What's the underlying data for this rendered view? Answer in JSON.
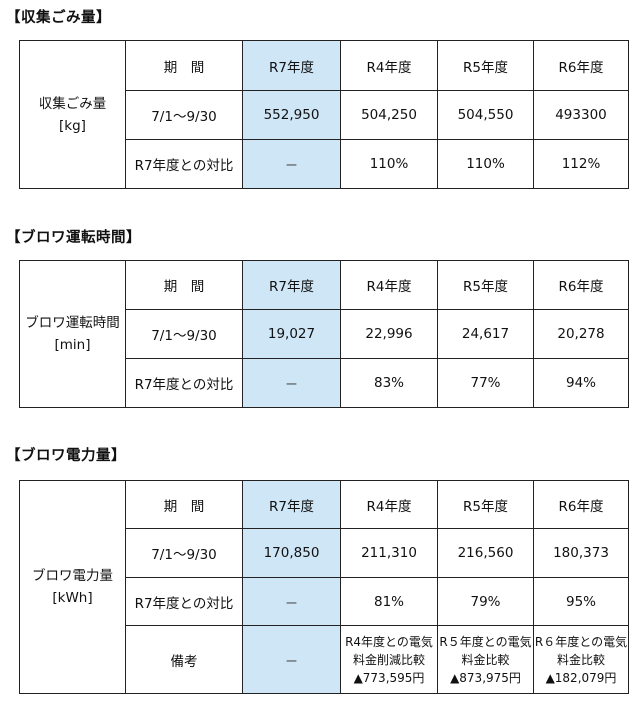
{
  "sections": [
    {
      "title": "【収集ごみ量】",
      "row_label": [
        "収集ごみ量",
        "[kg]"
      ],
      "header": [
        "期　間",
        "R7年度",
        "R4年度",
        "R5年度",
        "R6年度"
      ],
      "row1": [
        "7/1～9/30",
        "552,950",
        "504,250",
        "504,550",
        "493300"
      ],
      "row2": [
        "R7年度との対比",
        "－",
        "110%",
        "110%",
        "112%"
      ]
    },
    {
      "title": "【ブロワ運転時間】",
      "row_label": [
        "ブロワ運転時間",
        "[min]"
      ],
      "header": [
        "期　間",
        "R7年度",
        "R4年度",
        "R5年度",
        "R6年度"
      ],
      "row1": [
        "7/1～9/30",
        "19,027",
        "22,996",
        "24,617",
        "20,278"
      ],
      "row2": [
        "R7年度との対比",
        "－",
        "83%",
        "77%",
        "94%"
      ]
    },
    {
      "title": "【ブロワ電力量】",
      "row_label": [
        "ブロワ電力量",
        "[kWh]"
      ],
      "header": [
        "期　間",
        "R7年度",
        "R4年度",
        "R5年度",
        "R6年度"
      ],
      "row1": [
        "7/1～9/30",
        "170,850",
        "211,310",
        "216,560",
        "180,373"
      ],
      "row2": [
        "R7年度との対比",
        "－",
        "81%",
        "79%",
        "95%"
      ],
      "row3": {
        "label": "備考",
        "r7": "－",
        "notes": [
          [
            "R4年度との電気",
            "料金削減比較",
            "▲773,595円"
          ],
          [
            "R５年度との電気",
            "料金比較",
            "▲873,975円"
          ],
          [
            "R６年度との電気",
            "料金比較",
            "▲182,079円"
          ]
        ]
      }
    }
  ]
}
